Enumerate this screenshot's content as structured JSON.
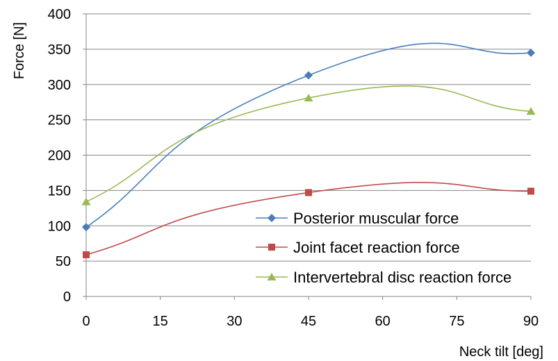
{
  "chart_data": {
    "type": "line",
    "title": "",
    "xlabel": "Neck tilt [deg]",
    "ylabel": "Force [N]",
    "xlim": [
      0,
      90
    ],
    "ylim": [
      0,
      400
    ],
    "x_ticks": [
      "0",
      "15",
      "30",
      "45",
      "60",
      "75",
      "90"
    ],
    "y_ticks": [
      "0",
      "50",
      "100",
      "150",
      "200",
      "250",
      "300",
      "350",
      "400"
    ],
    "grid": "horizontal",
    "legend_position": "bottom-right",
    "smoothed": true,
    "series": [
      {
        "name": "Posterior muscular force",
        "color": "#4a7ebb",
        "marker": "diamond",
        "x": [
          0,
          45,
          90
        ],
        "values": [
          98,
          313,
          345
        ]
      },
      {
        "name": "Joint facet reaction force",
        "color": "#be4b48",
        "marker": "square",
        "x": [
          0,
          45,
          90
        ],
        "values": [
          59,
          147,
          149
        ]
      },
      {
        "name": "Intervertebral disc reaction force",
        "color": "#98b954",
        "marker": "triangle",
        "x": [
          0,
          45,
          90
        ],
        "values": [
          134,
          281,
          262
        ]
      }
    ]
  }
}
